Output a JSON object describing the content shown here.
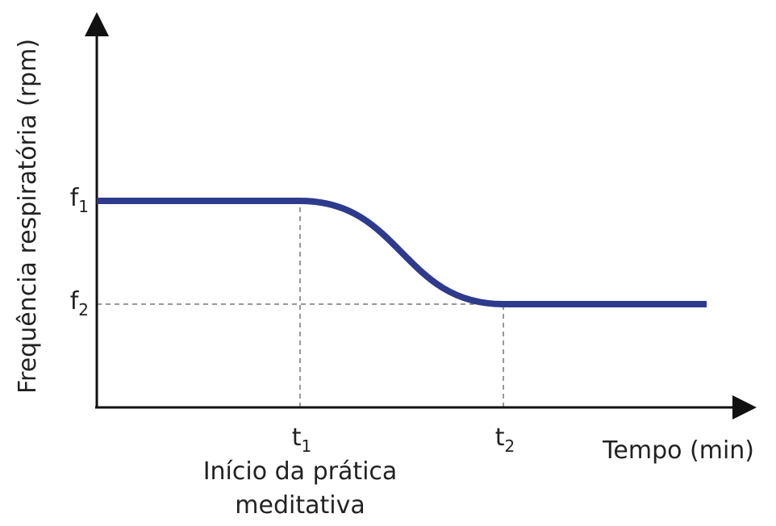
{
  "chart_data": {
    "type": "line",
    "title": "",
    "xlabel": "Tempo (min)",
    "ylabel": "Frequência respiratória (rpm)",
    "grid": false,
    "x_ticks": [
      {
        "id": "t1",
        "base": "t",
        "sub": "1",
        "x": 1,
        "note_lines": [
          "Início da prática",
          "meditativa"
        ]
      },
      {
        "id": "t2",
        "base": "t",
        "sub": "2",
        "x": 2
      }
    ],
    "y_ticks": [
      {
        "id": "f1",
        "base": "f",
        "sub": "1",
        "y": 2
      },
      {
        "id": "f2",
        "base": "f",
        "sub": "2",
        "y": 1
      }
    ],
    "xlim": [
      0,
      3
    ],
    "ylim": [
      0,
      4
    ],
    "series": [
      {
        "color": "#2e3a8c",
        "shape": "plateau-sigmoid-drop-plateau",
        "x": [
          0,
          1,
          2,
          3
        ],
        "y": [
          2,
          2,
          1,
          1
        ]
      }
    ],
    "guides": [
      {
        "from": "t1",
        "to": "f1"
      },
      {
        "from": "t2",
        "to": "f2"
      },
      {
        "from": "f2",
        "to": "t2"
      }
    ]
  }
}
